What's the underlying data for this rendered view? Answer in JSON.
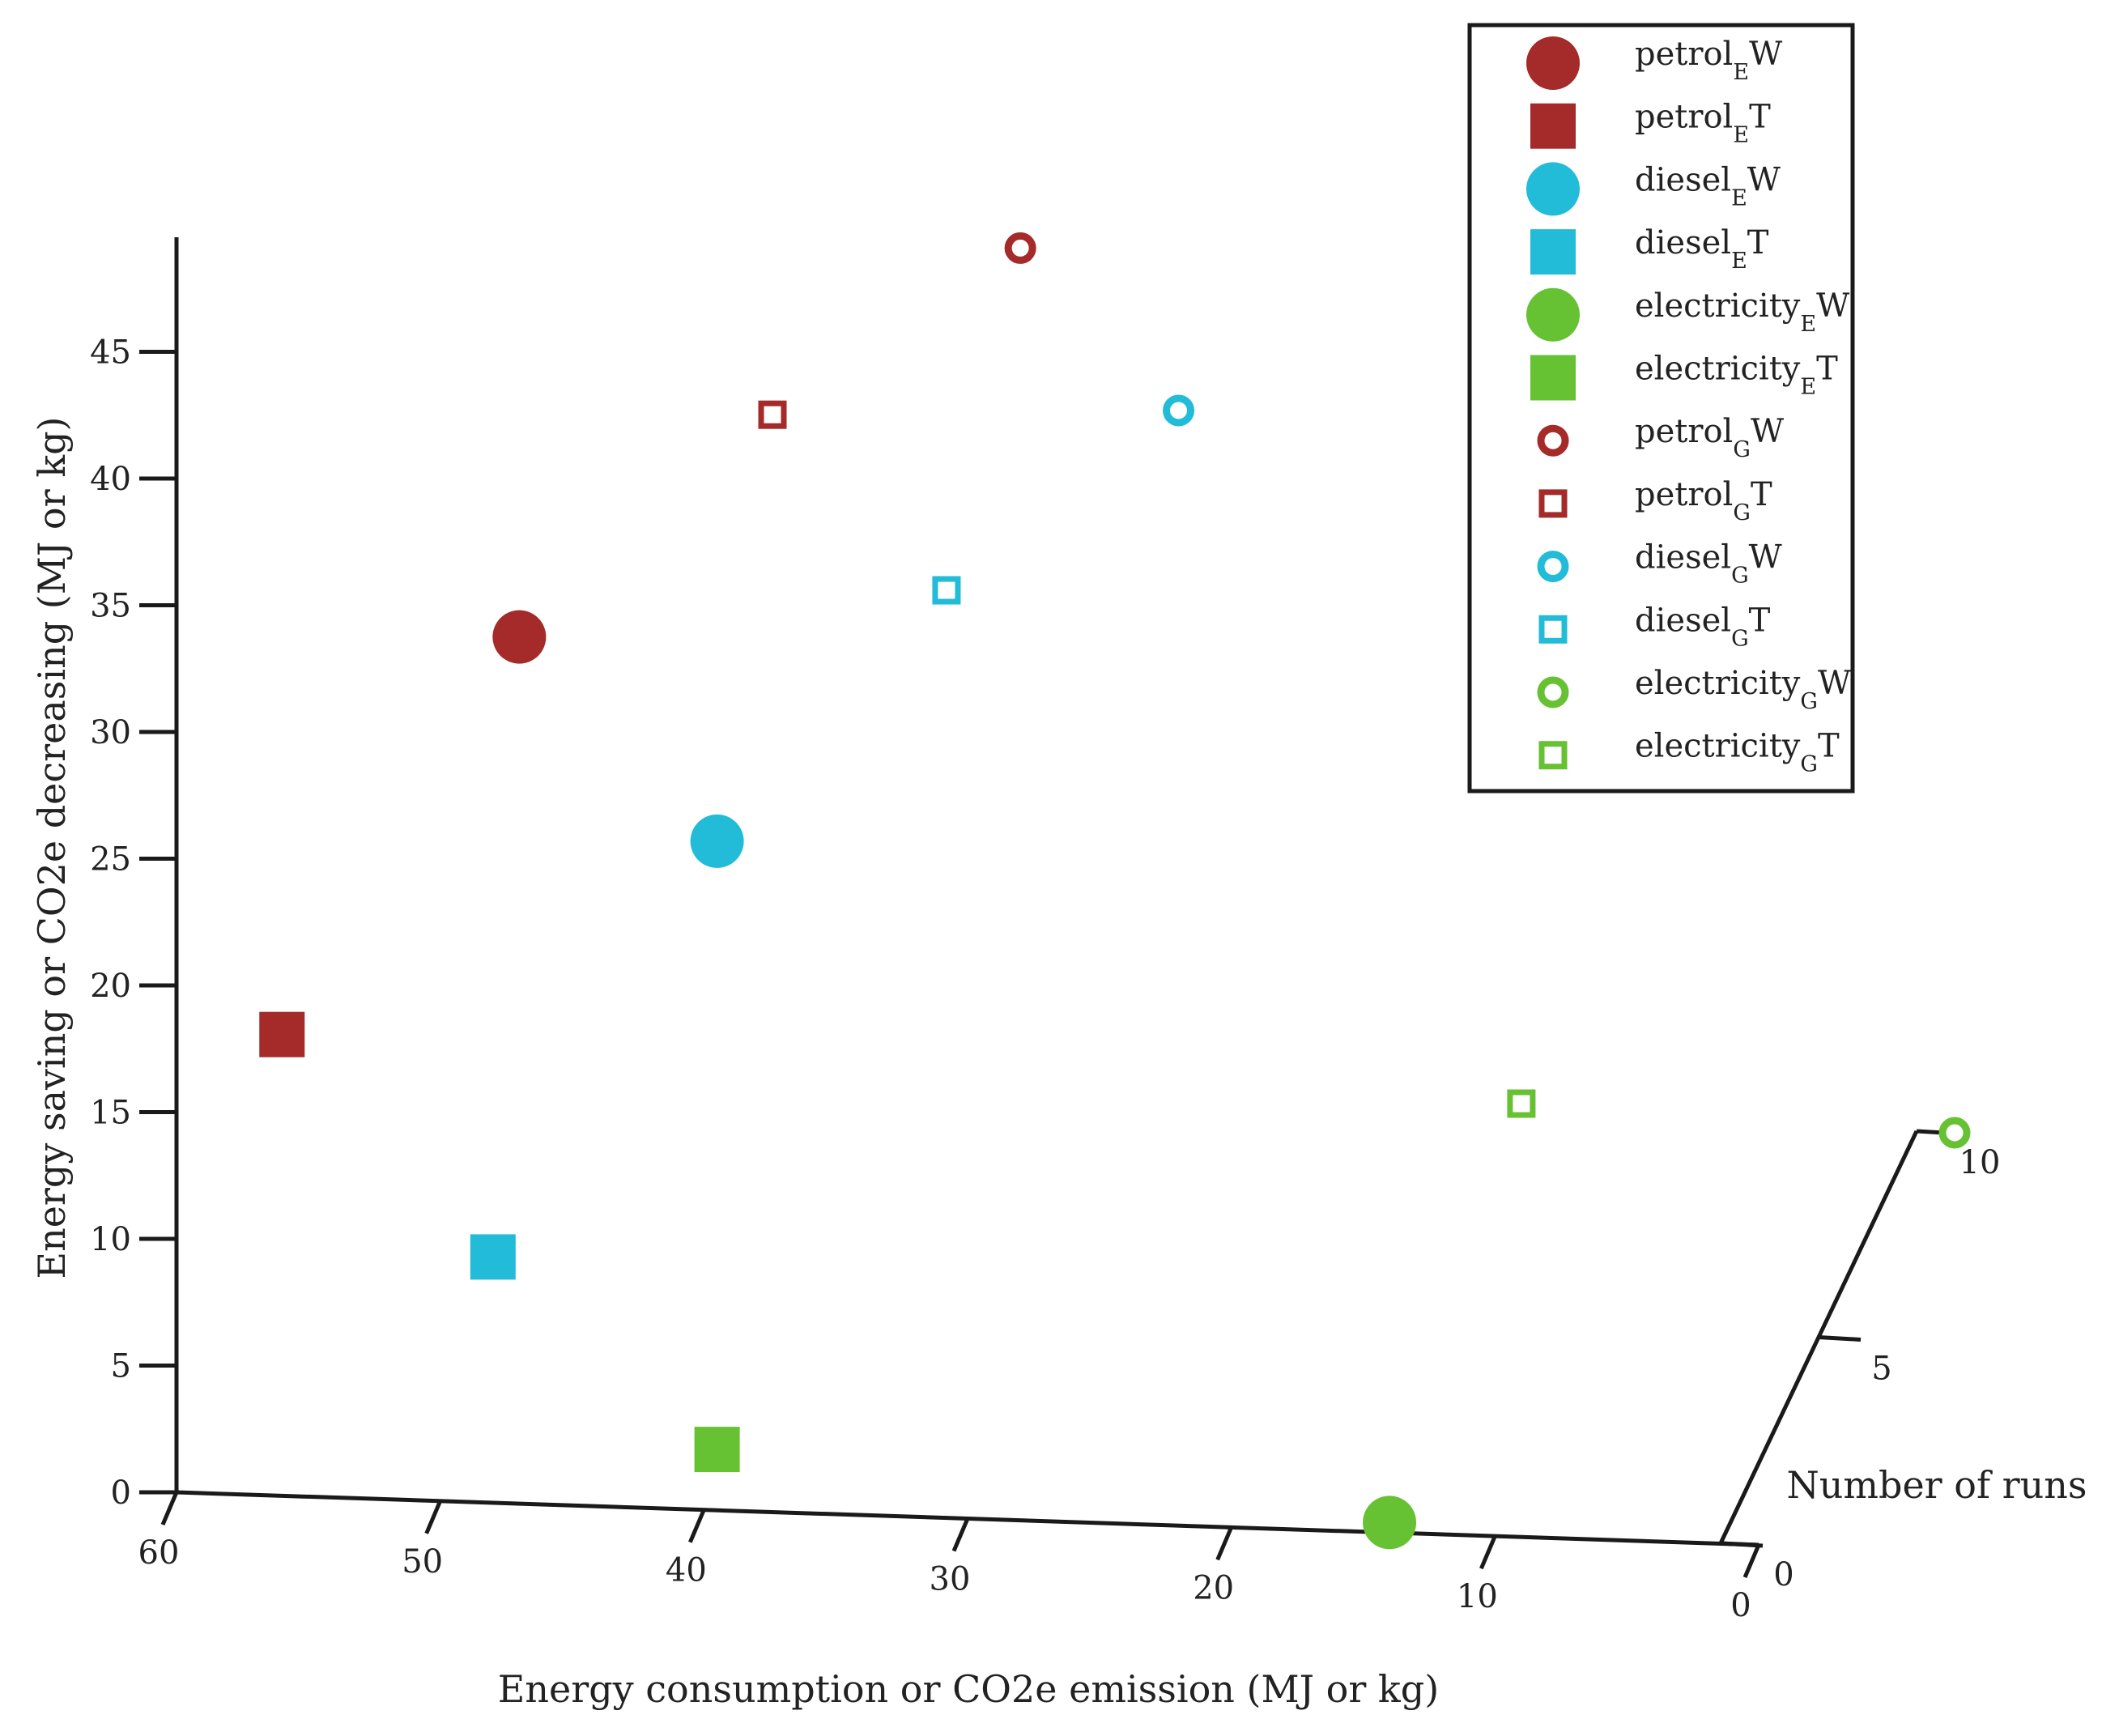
{
  "chart_data": {
    "type": "scatter",
    "title": "",
    "xlabel": "Energy consumption or CO2e emission (MJ or kg)",
    "ylabel": "Energy saving or CO2e decreasing (MJ or kg)",
    "zlabel": "Number of runs",
    "xlim": [
      60,
      0
    ],
    "ylim": [
      0,
      49
    ],
    "zlim": [
      0,
      10
    ],
    "xticks": [
      "60",
      "50",
      "40",
      "30",
      "20",
      "10",
      "0"
    ],
    "yticks": [
      "0",
      "5",
      "10",
      "15",
      "20",
      "25",
      "30",
      "35",
      "40",
      "45"
    ],
    "zticks": [
      "0",
      "5",
      "10"
    ],
    "legend_position": "top-right",
    "series": [
      {
        "name": "petrol_E W",
        "base": "petrol",
        "sub": "E",
        "suffix": "W",
        "marker": "circle",
        "filled": true,
        "color": "#a52a2a",
        "points": [
          {
            "x": 47,
            "y": 34.2,
            "z": 0
          }
        ]
      },
      {
        "name": "petrol_E T",
        "base": "petrol",
        "sub": "E",
        "suffix": "T",
        "marker": "square",
        "filled": true,
        "color": "#a52a2a",
        "points": [
          {
            "x": 56,
            "y": 18.2,
            "z": 0
          }
        ]
      },
      {
        "name": "diesel_E W",
        "base": "diesel",
        "sub": "E",
        "suffix": "W",
        "marker": "circle",
        "filled": true,
        "color": "#22bcd8",
        "points": [
          {
            "x": 39.5,
            "y": 26.4,
            "z": 0
          }
        ]
      },
      {
        "name": "diesel_E T",
        "base": "diesel",
        "sub": "E",
        "suffix": "T",
        "marker": "square",
        "filled": true,
        "color": "#22bcd8",
        "points": [
          {
            "x": 48,
            "y": 9.7,
            "z": 0
          }
        ]
      },
      {
        "name": "electricity_E W",
        "base": "electricity",
        "sub": "E",
        "suffix": "W",
        "marker": "circle",
        "filled": true,
        "color": "#66c233",
        "points": [
          {
            "x": 14,
            "y": 0.4,
            "z": 0
          }
        ]
      },
      {
        "name": "electricity_E T",
        "base": "electricity",
        "sub": "E",
        "suffix": "T",
        "marker": "square",
        "filled": true,
        "color": "#66c233",
        "points": [
          {
            "x": 39.5,
            "y": 2.4,
            "z": 0
          }
        ]
      },
      {
        "name": "petrol_G W",
        "base": "petrol",
        "sub": "G",
        "suffix": "W",
        "marker": "circle",
        "filled": false,
        "color": "#a52a2a",
        "points": [
          {
            "x": 28,
            "y": 50.2,
            "z": 0
          }
        ]
      },
      {
        "name": "petrol_G T",
        "base": "petrol",
        "sub": "G",
        "suffix": "T",
        "marker": "square",
        "filled": false,
        "color": "#a52a2a",
        "points": [
          {
            "x": 37.4,
            "y": 43.3,
            "z": 0
          }
        ]
      },
      {
        "name": "diesel_G W",
        "base": "diesel",
        "sub": "G",
        "suffix": "W",
        "marker": "circle",
        "filled": false,
        "color": "#22bcd8",
        "points": [
          {
            "x": 22,
            "y": 44,
            "z": 0
          }
        ]
      },
      {
        "name": "diesel_G T",
        "base": "diesel",
        "sub": "G",
        "suffix": "T",
        "marker": "square",
        "filled": false,
        "color": "#22bcd8",
        "points": [
          {
            "x": 30.8,
            "y": 36.6,
            "z": 0
          }
        ]
      },
      {
        "name": "electricity_G W",
        "base": "electricity",
        "sub": "G",
        "suffix": "W",
        "marker": "circle",
        "filled": false,
        "color": "#66c233",
        "points": [
          {
            "x": 0,
            "y": 0,
            "z": 10
          }
        ]
      },
      {
        "name": "electricity_G T",
        "base": "electricity",
        "sub": "G",
        "suffix": "T",
        "marker": "square",
        "filled": false,
        "color": "#66c233",
        "points": [
          {
            "x": 9,
            "y": 17.1,
            "z": 0
          }
        ]
      }
    ]
  }
}
